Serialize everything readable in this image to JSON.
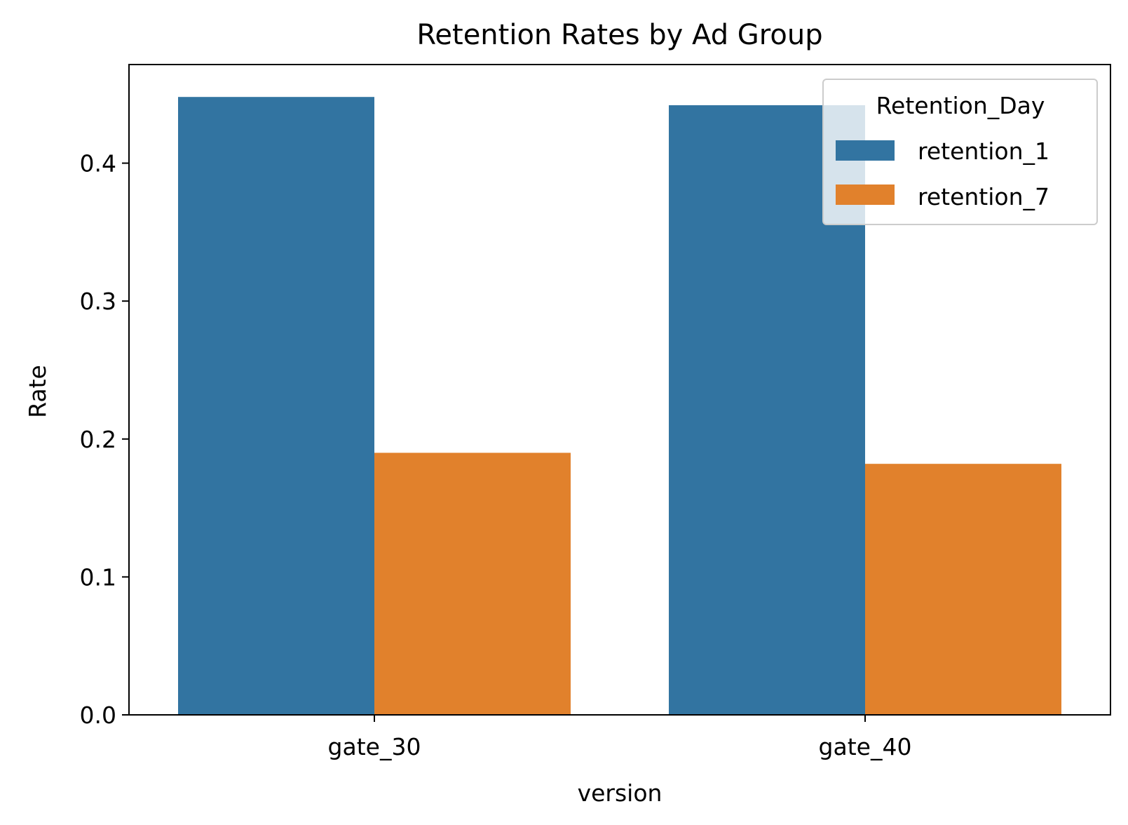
{
  "chart_data": {
    "type": "bar",
    "title": "Retention Rates by Ad Group",
    "xlabel": "version",
    "ylabel": "Rate",
    "categories": [
      "gate_30",
      "gate_40"
    ],
    "series": [
      {
        "name": "retention_1",
        "values": [
          0.448,
          0.442
        ],
        "color": "#3274a1"
      },
      {
        "name": "retention_7",
        "values": [
          0.19,
          0.182
        ],
        "color": "#e1812c"
      }
    ],
    "ylim": [
      0,
      0.4715
    ],
    "yticks": [
      0.0,
      0.1,
      0.2,
      0.3,
      0.4
    ],
    "ytick_labels": [
      "0.0",
      "0.1",
      "0.2",
      "0.3",
      "0.4"
    ],
    "grid": false,
    "legend": {
      "title": "Retention_Day",
      "position": "top-right"
    }
  }
}
